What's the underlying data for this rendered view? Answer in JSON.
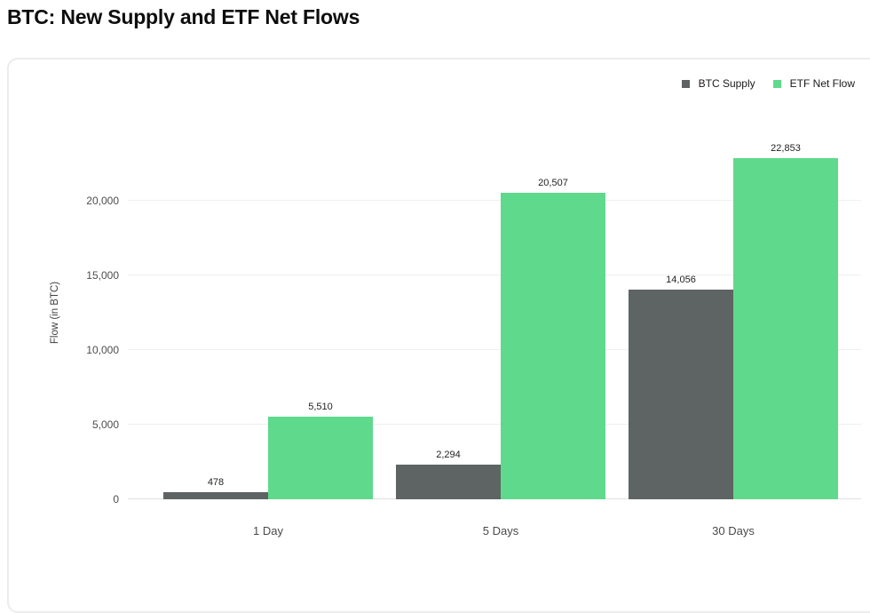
{
  "page": {
    "title": "BTC: New Supply and ETF Net Flows"
  },
  "chart_data": {
    "type": "bar",
    "title": "BTC: New Supply and ETF Net Flows",
    "categories": [
      "1 Day",
      "5 Days",
      "30 Days"
    ],
    "series": [
      {
        "name": "BTC Supply",
        "color": "#5E6363",
        "values": [
          478,
          2294,
          14056
        ]
      },
      {
        "name": "ETF Net Flow",
        "color": "#5FD98C",
        "values": [
          5510,
          20507,
          22853
        ]
      }
    ],
    "data_labels": [
      [
        "478",
        "2,294",
        "14,056"
      ],
      [
        "5,510",
        "20,507",
        "22,853"
      ]
    ],
    "xlabel": "",
    "ylabel": "Flow (in BTC)",
    "ylim": [
      0,
      25000
    ],
    "yticks": [
      0,
      5000,
      10000,
      15000,
      20000
    ],
    "ytick_labels": [
      "0",
      "5,000",
      "10,000",
      "15,000",
      "20,000"
    ],
    "grid": true,
    "legend_position": "top-right",
    "colors": {
      "gridline": "#efefef",
      "baseline": "#e0e0e0",
      "tick_text": "#4d4d4d",
      "label_text": "#1f1f1f"
    }
  }
}
